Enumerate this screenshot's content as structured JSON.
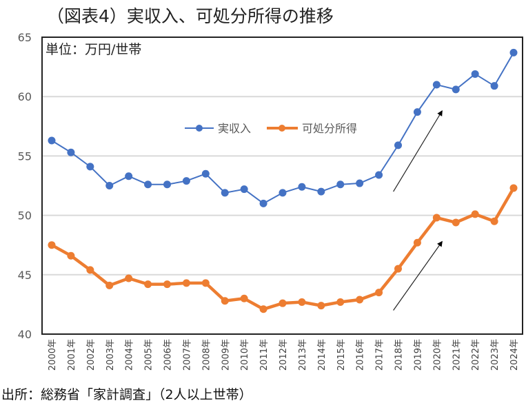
{
  "title": "（図表4）実収入、可処分所得の推移",
  "source": "出所：総務省「家計調査」（2人以上世帯）",
  "chart_data": {
    "type": "line",
    "title": "（図表4）実収入、可処分所得の推移",
    "unit_label": "単位：万円/世帯",
    "xlabel": "",
    "ylabel": "",
    "ylim": [
      40,
      65
    ],
    "yticks": [
      40,
      45,
      50,
      55,
      60,
      65
    ],
    "grid": true,
    "legend_position": "center",
    "categories": [
      "2000年",
      "2001年",
      "2002年",
      "2003年",
      "2004年",
      "2005年",
      "2006年",
      "2007年",
      "2008年",
      "2009年",
      "2010年",
      "2011年",
      "2012年",
      "2013年",
      "2014年",
      "2015年",
      "2016年",
      "2017年",
      "2018年",
      "2019年",
      "2020年",
      "2021年",
      "2022年",
      "2023年",
      "2024年"
    ],
    "series": [
      {
        "name": "実収入",
        "color": "#4472C4",
        "values": [
          56.3,
          55.3,
          54.1,
          52.5,
          53.3,
          52.6,
          52.6,
          52.9,
          53.5,
          51.9,
          52.2,
          51.0,
          51.9,
          52.4,
          52.0,
          52.6,
          52.7,
          53.4,
          55.9,
          58.7,
          61.0,
          60.6,
          61.9,
          60.9,
          63.7
        ]
      },
      {
        "name": "可処分所得",
        "color": "#ED7D31",
        "values": [
          47.5,
          46.6,
          45.4,
          44.1,
          44.7,
          44.2,
          44.2,
          44.3,
          44.3,
          42.8,
          43.0,
          42.1,
          42.6,
          42.7,
          42.4,
          42.7,
          42.9,
          43.5,
          45.5,
          47.7,
          49.8,
          49.4,
          50.1,
          49.5,
          52.3
        ]
      }
    ],
    "annotations": [
      {
        "type": "arrow",
        "from": [
          "2017年",
          52
        ],
        "to": [
          "2020年",
          58.8
        ]
      },
      {
        "type": "arrow",
        "from": [
          "2017年",
          42
        ],
        "to": [
          "2020年",
          47.8
        ]
      }
    ]
  }
}
